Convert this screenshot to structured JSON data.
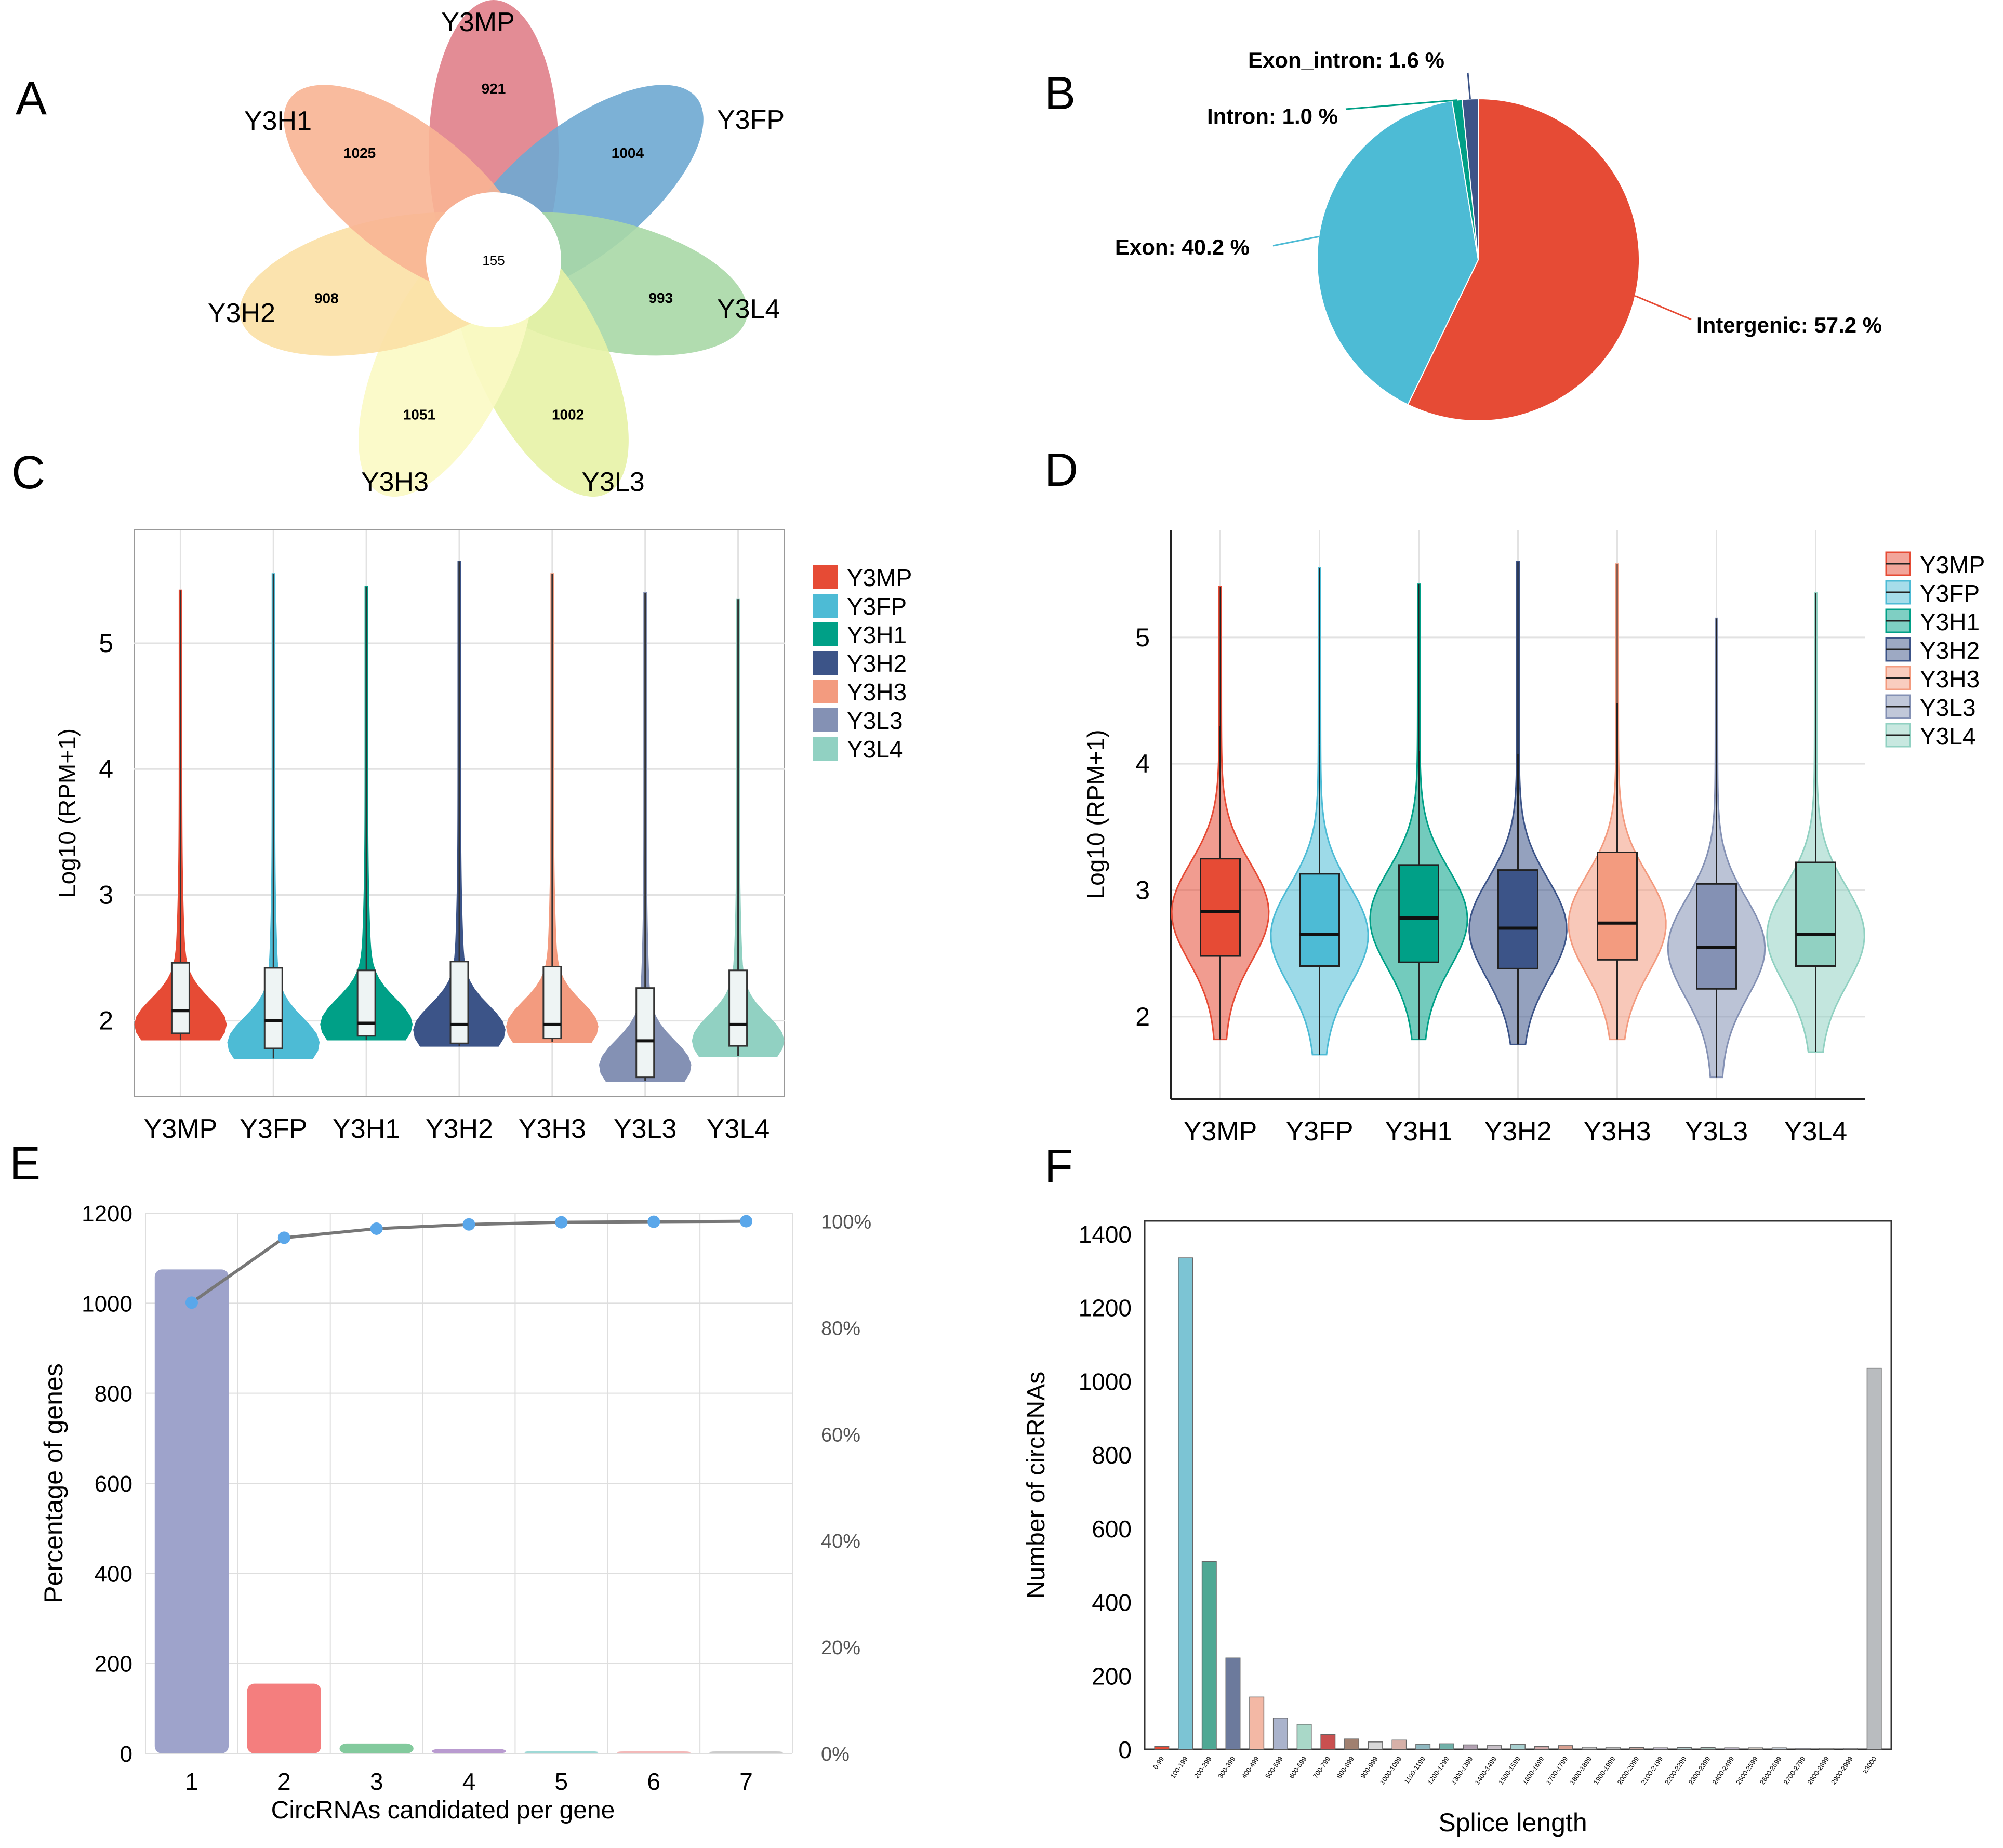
{
  "panel_labels": {
    "A": "A",
    "B": "B",
    "C": "C",
    "D": "D",
    "E": "E",
    "F": "F"
  },
  "colors": {
    "Y3MP": "#e64b35",
    "Y3FP": "#4dbbd5",
    "Y3H1": "#00a087",
    "Y3H2": "#3c5488",
    "Y3H3": "#f39b7f",
    "Y3L3": "#8491b4",
    "Y3L4": "#91d1c2"
  },
  "chart_data": [
    {
      "panel": "A",
      "type": "venn-flower",
      "center_label": "155",
      "petals": [
        {
          "name": "Y3MP",
          "value": "921",
          "color": "#e08089"
        },
        {
          "name": "Y3FP",
          "value": "1004",
          "color": "#6ea8d1"
        },
        {
          "name": "Y3L4",
          "value": "993",
          "color": "#a9d8a6"
        },
        {
          "name": "Y3L3",
          "value": "1002",
          "color": "#e7f2a6"
        },
        {
          "name": "Y3H3",
          "value": "1051",
          "color": "#fbfac4"
        },
        {
          "name": "Y3H2",
          "value": "908",
          "color": "#fbe0a5"
        },
        {
          "name": "Y3H1",
          "value": "1025",
          "color": "#f8b494"
        }
      ]
    },
    {
      "panel": "B",
      "type": "pie",
      "slices": [
        {
          "name": "Intergenic",
          "value": 57.2,
          "label": "Intergenic: 57.2 %",
          "color": "#e64b35"
        },
        {
          "name": "Exon",
          "value": 40.2,
          "label": "Exon: 40.2 %",
          "color": "#4dbbd5"
        },
        {
          "name": "Intron",
          "value": 1.0,
          "label": "Intron: 1.0 %",
          "color": "#00a087"
        },
        {
          "name": "Exon_intron",
          "value": 1.6,
          "label": "Exon_intron: 1.6 %",
          "color": "#3c5488"
        }
      ]
    },
    {
      "panel": "C",
      "type": "violin",
      "ylabel": "Log10 (RPM+1)",
      "ylim": [
        1.4,
        5.9
      ],
      "yticks": [
        "2",
        "3",
        "4",
        "5"
      ],
      "yticks_values": [
        2,
        3,
        4,
        5
      ],
      "legend": [
        "Y3MP",
        "Y3FP",
        "Y3H1",
        "Y3H2",
        "Y3H3",
        "Y3L3",
        "Y3L4"
      ],
      "groups": [
        {
          "name": "Y3MP",
          "min": 1.85,
          "q1": 1.9,
          "median": 2.08,
          "q3": 2.46,
          "max": 5.42
        },
        {
          "name": "Y3FP",
          "min": 1.7,
          "q1": 1.78,
          "median": 2.0,
          "q3": 2.42,
          "max": 5.55
        },
        {
          "name": "Y3H1",
          "min": 1.85,
          "q1": 1.88,
          "median": 1.98,
          "q3": 2.4,
          "max": 5.45
        },
        {
          "name": "Y3H2",
          "min": 1.8,
          "q1": 1.82,
          "median": 1.97,
          "q3": 2.47,
          "max": 5.65
        },
        {
          "name": "Y3H3",
          "min": 1.83,
          "q1": 1.86,
          "median": 1.97,
          "q3": 2.43,
          "max": 5.55
        },
        {
          "name": "Y3L3",
          "min": 1.52,
          "q1": 1.55,
          "median": 1.84,
          "q3": 2.26,
          "max": 5.4
        },
        {
          "name": "Y3L4",
          "min": 1.72,
          "q1": 1.8,
          "median": 1.97,
          "q3": 2.4,
          "max": 5.35
        }
      ]
    },
    {
      "panel": "D",
      "type": "violin",
      "ylabel": "Log10 (RPM+1)",
      "ylim": [
        1.35,
        5.85
      ],
      "yticks": [
        "2",
        "3",
        "4",
        "5"
      ],
      "yticks_values": [
        2,
        3,
        4,
        5
      ],
      "legend": [
        "Y3MP",
        "Y3FP",
        "Y3H1",
        "Y3H2",
        "Y3H3",
        "Y3L3",
        "Y3L4"
      ],
      "groups": [
        {
          "name": "Y3MP",
          "min": 1.82,
          "q1": 2.48,
          "median": 2.83,
          "q3": 3.25,
          "max": 5.4,
          "whisk": 4.3
        },
        {
          "name": "Y3FP",
          "min": 1.7,
          "q1": 2.4,
          "median": 2.65,
          "q3": 3.13,
          "max": 5.55,
          "whisk": 4.15
        },
        {
          "name": "Y3H1",
          "min": 1.82,
          "q1": 2.43,
          "median": 2.78,
          "q3": 3.2,
          "max": 5.42,
          "whisk": 4.1
        },
        {
          "name": "Y3H2",
          "min": 1.78,
          "q1": 2.38,
          "median": 2.7,
          "q3": 3.16,
          "max": 5.6,
          "whisk": 4.08
        },
        {
          "name": "Y3H3",
          "min": 1.82,
          "q1": 2.45,
          "median": 2.74,
          "q3": 3.3,
          "max": 5.58,
          "whisk": 4.48
        },
        {
          "name": "Y3L3",
          "min": 1.52,
          "q1": 2.22,
          "median": 2.55,
          "q3": 3.05,
          "max": 5.15,
          "whisk": 4.12
        },
        {
          "name": "Y3L4",
          "min": 1.72,
          "q1": 2.4,
          "median": 2.65,
          "q3": 3.22,
          "max": 5.35,
          "whisk": 4.35
        }
      ]
    },
    {
      "panel": "E",
      "type": "bar",
      "xlabel": "CircRNAs candidated per gene",
      "ylabel": "Percentage of genes",
      "categories": [
        "1",
        "2",
        "3",
        "4",
        "5",
        "6",
        "7"
      ],
      "values": [
        1075,
        155,
        22,
        10,
        5,
        2,
        1
      ],
      "bar_colors": [
        "#9ea3cb",
        "#f47e7e",
        "#83ca9d",
        "#b99bd0",
        "#9fd9d6",
        "#f3b9b9",
        "#cccccc"
      ],
      "ylim": [
        0,
        1200
      ],
      "yticks": [
        "0",
        "200",
        "400",
        "600",
        "800",
        "1000",
        "1200"
      ],
      "y2ticks": [
        "0%",
        "20%",
        "40%",
        "60%",
        "80%",
        "100%"
      ],
      "cumulative_pct": [
        84.7,
        96.9,
        98.6,
        99.4,
        99.8,
        99.9,
        100
      ]
    },
    {
      "panel": "F",
      "type": "bar",
      "xlabel": "Splice length",
      "ylabel": "Number of circRNAs",
      "ylim": [
        0,
        1400
      ],
      "yticks": [
        "0",
        "200",
        "400",
        "600",
        "800",
        "1000",
        "1200",
        "1400"
      ],
      "categories": [
        "0-99",
        "100-199",
        "200-299",
        "300-399",
        "400-499",
        "500-599",
        "600-699",
        "700-799",
        "800-899",
        "900-999",
        "1000-1099",
        "1100-1199",
        "1200-1299",
        "1300-1399",
        "1400-1499",
        "1500-1599",
        "1600-1699",
        "1700-1799",
        "1800-1899",
        "1900-1999",
        "2000-2099",
        "2100-2199",
        "2200-2299",
        "2300-2399",
        "2400-2499",
        "2500-2599",
        "2600-2699",
        "2700-2799",
        "2800-2899",
        "2900-2999",
        "≥3000"
      ],
      "values": [
        8,
        1335,
        510,
        248,
        142,
        85,
        68,
        40,
        28,
        20,
        25,
        14,
        15,
        12,
        10,
        13,
        8,
        10,
        6,
        6,
        5,
        4,
        5,
        5,
        4,
        4,
        4,
        3,
        3,
        3,
        1035
      ],
      "bar_colors": [
        "#e64b35",
        "#7cc4d4",
        "#4fa894",
        "#6c7a9c",
        "#f3b8a5",
        "#aab3cc",
        "#a9d8c8",
        "#c95050",
        "#a08070",
        "#d8d8d8",
        "#d6b0a8",
        "#8fb8c0",
        "#70b0a8",
        "#b0a0b0",
        "#c8c0c8",
        "#a8d0d0",
        "#d0a8a8",
        "#d8a090",
        "#c0c0c0",
        "#b8b8b8",
        "#c8a8a0",
        "#c0b8c8",
        "#b0c8c8",
        "#a8c0b8",
        "#b8b0c0",
        "#c8c0b8",
        "#c0c8d0",
        "#b8b8c8",
        "#c8c8c0",
        "#c0c0c8",
        "#b9bcbf"
      ]
    }
  ]
}
